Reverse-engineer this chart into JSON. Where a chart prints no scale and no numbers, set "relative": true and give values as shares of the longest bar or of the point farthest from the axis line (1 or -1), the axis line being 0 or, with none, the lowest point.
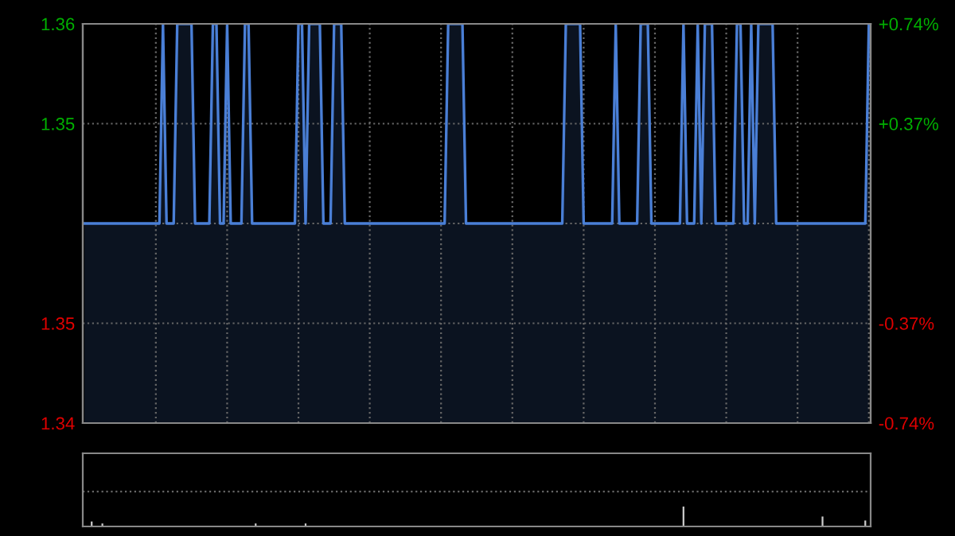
{
  "chart_data": [
    {
      "type": "area",
      "categories": [
        null,
        null,
        null,
        null,
        null,
        null,
        null,
        null,
        null,
        null,
        null,
        null,
        null,
        null,
        null,
        null,
        null,
        null,
        null,
        null,
        null,
        null,
        null,
        null,
        null,
        null,
        null,
        null,
        null,
        null,
        null,
        null,
        null,
        null,
        null,
        null,
        null,
        null,
        null,
        null,
        null,
        null,
        null,
        null,
        null,
        null,
        null,
        null,
        null,
        null,
        null,
        null,
        null,
        null,
        null,
        null,
        null,
        null,
        null,
        null,
        null,
        null,
        null,
        null,
        null,
        null,
        null,
        null,
        null,
        null,
        null,
        null,
        null,
        null,
        null,
        null,
        null,
        null,
        null,
        null,
        null,
        null,
        null,
        null,
        null,
        null,
        null,
        null,
        null,
        null,
        null,
        null,
        null,
        null,
        null,
        null,
        null,
        null,
        null,
        null,
        null,
        null,
        null,
        null,
        null,
        null,
        null,
        null,
        null,
        null,
        null,
        null,
        null,
        null,
        null,
        null,
        null,
        null,
        null,
        null,
        null,
        null,
        null,
        null,
        null,
        null,
        null,
        null,
        null,
        null,
        null,
        null,
        null,
        null,
        null,
        null,
        null,
        null,
        null,
        null,
        null,
        null,
        null,
        null,
        null,
        null,
        null,
        null,
        null,
        null,
        null,
        null,
        null,
        null,
        null,
        null,
        null,
        null,
        null,
        null,
        null,
        null,
        null,
        null,
        null,
        null,
        null,
        null,
        null,
        null,
        null,
        null,
        null,
        null,
        null,
        null,
        null,
        null,
        null,
        null,
        null,
        null,
        null,
        null,
        null,
        null,
        null,
        null,
        null,
        null,
        null,
        null,
        null,
        null,
        null,
        null,
        null,
        null,
        null,
        null,
        null,
        null,
        null,
        null,
        null,
        null,
        null,
        null,
        null,
        null,
        null,
        null,
        null,
        null,
        null,
        null,
        null,
        null,
        null,
        null,
        null
      ],
      "series": [
        {
          "color": "#4a7fd6",
          "values": [
            1.35,
            1.35,
            1.35,
            1.35,
            1.35,
            1.35,
            1.35,
            1.35,
            1.35,
            1.35,
            1.35,
            1.35,
            1.35,
            1.35,
            1.35,
            1.35,
            1.35,
            1.35,
            1.35,
            1.35,
            1.35,
            1.35,
            1.36,
            1.35,
            1.35,
            1.35,
            1.36,
            1.36,
            1.36,
            1.36,
            1.36,
            1.35,
            1.35,
            1.35,
            1.35,
            1.35,
            1.36,
            1.36,
            1.35,
            1.35,
            1.36,
            1.35,
            1.35,
            1.35,
            1.35,
            1.36,
            1.36,
            1.35,
            1.35,
            1.35,
            1.35,
            1.35,
            1.35,
            1.35,
            1.35,
            1.35,
            1.35,
            1.35,
            1.35,
            1.35,
            1.36,
            1.36,
            1.35,
            1.36,
            1.36,
            1.36,
            1.36,
            1.35,
            1.35,
            1.35,
            1.36,
            1.36,
            1.36,
            1.35,
            1.35,
            1.35,
            1.35,
            1.35,
            1.35,
            1.35,
            1.35,
            1.35,
            1.35,
            1.35,
            1.35,
            1.35,
            1.35,
            1.35,
            1.35,
            1.35,
            1.35,
            1.35,
            1.35,
            1.35,
            1.35,
            1.35,
            1.35,
            1.35,
            1.35,
            1.35,
            1.35,
            1.35,
            1.36,
            1.36,
            1.36,
            1.36,
            1.36,
            1.35,
            1.35,
            1.35,
            1.35,
            1.35,
            1.35,
            1.35,
            1.35,
            1.35,
            1.35,
            1.35,
            1.35,
            1.35,
            1.35,
            1.35,
            1.35,
            1.35,
            1.35,
            1.35,
            1.35,
            1.35,
            1.35,
            1.35,
            1.35,
            1.35,
            1.35,
            1.35,
            1.35,
            1.36,
            1.36,
            1.36,
            1.36,
            1.36,
            1.35,
            1.35,
            1.35,
            1.35,
            1.35,
            1.35,
            1.35,
            1.35,
            1.35,
            1.36,
            1.35,
            1.35,
            1.35,
            1.35,
            1.35,
            1.35,
            1.36,
            1.36,
            1.36,
            1.35,
            1.35,
            1.35,
            1.35,
            1.35,
            1.35,
            1.35,
            1.35,
            1.35,
            1.36,
            1.35,
            1.35,
            1.35,
            1.36,
            1.35,
            1.36,
            1.36,
            1.36,
            1.35,
            1.35,
            1.35,
            1.35,
            1.35,
            1.35,
            1.36,
            1.36,
            1.35,
            1.35,
            1.36,
            1.35,
            1.36,
            1.36,
            1.36,
            1.36,
            1.36,
            1.35,
            1.35,
            1.35,
            1.35,
            1.35,
            1.35,
            1.35,
            1.35,
            1.35,
            1.35,
            1.35,
            1.35,
            1.35,
            1.35,
            1.35,
            1.35,
            1.35,
            1.35,
            1.35,
            1.35,
            1.35,
            1.35,
            1.35,
            1.35,
            1.35,
            1.35,
            1.36
          ]
        }
      ],
      "ylim": [
        1.34,
        1.36
      ],
      "yticks": [
        1.36,
        {
          "value": 1.355,
          "label": "1.35"
        },
        {
          "value": 1.35,
          "label": null
        },
        {
          "value": 1.345,
          "label": "1.35"
        },
        1.34
      ],
      "y2lim": [
        -0.74,
        0.74
      ],
      "y2ticks": [
        {
          "value": 0.74,
          "label": "+0.74%"
        },
        {
          "value": 0.37,
          "label": "+0.37%"
        },
        {
          "value": 0,
          "label": null
        },
        {
          "value": -0.37,
          "label": "-0.37%"
        },
        {
          "value": -0.74,
          "label": "-0.74%"
        }
      ],
      "grid": true,
      "tick_labels": "y"
    },
    {
      "type": "bar",
      "relative": true,
      "tick_labels": false,
      "ref_lines": [
        {
          "axis": "y",
          "value": 1.75,
          "color": "#666666",
          "line_style": "dotted"
        }
      ],
      "categories": [
        null,
        null,
        null,
        null,
        null,
        null,
        null,
        null,
        null,
        null,
        null,
        null,
        null,
        null,
        null,
        null,
        null,
        null,
        null,
        null,
        null,
        null,
        null,
        null,
        null,
        null,
        null,
        null,
        null,
        null,
        null,
        null,
        null,
        null,
        null,
        null,
        null,
        null,
        null,
        null,
        null,
        null,
        null,
        null,
        null,
        null,
        null,
        null,
        null,
        null,
        null,
        null,
        null,
        null,
        null,
        null,
        null,
        null,
        null,
        null,
        null,
        null,
        null,
        null,
        null,
        null,
        null,
        null,
        null,
        null,
        null,
        null,
        null,
        null,
        null,
        null,
        null,
        null,
        null,
        null,
        null,
        null,
        null,
        null,
        null,
        null,
        null,
        null,
        null,
        null,
        null,
        null,
        null,
        null,
        null,
        null,
        null,
        null,
        null,
        null,
        null,
        null,
        null,
        null,
        null,
        null,
        null,
        null,
        null,
        null,
        null,
        null,
        null,
        null,
        null,
        null,
        null,
        null,
        null,
        null,
        null,
        null,
        null,
        null,
        null,
        null,
        null,
        null,
        null,
        null,
        null,
        null,
        null,
        null,
        null,
        null,
        null,
        null,
        null,
        null,
        null,
        null,
        null,
        null,
        null,
        null,
        null,
        null,
        null,
        null,
        null,
        null,
        null,
        null,
        null,
        null,
        null,
        null,
        null,
        null,
        null,
        null,
        null,
        null,
        null,
        null,
        null,
        null,
        null,
        null,
        null,
        null,
        null,
        null,
        null,
        null,
        null,
        null,
        null,
        null,
        null,
        null,
        null,
        null,
        null,
        null,
        null,
        null,
        null,
        null,
        null,
        null,
        null,
        null,
        null,
        null,
        null,
        null,
        null,
        null,
        null,
        null,
        null,
        null,
        null,
        null,
        null,
        null,
        null,
        null,
        null,
        null,
        null,
        null,
        null,
        null,
        null,
        null,
        null,
        null,
        null
      ],
      "series": [
        {
          "color": "#cccccc",
          "values": [
            0,
            0,
            0.25,
            0,
            0,
            0.15,
            0,
            0,
            0,
            0,
            0,
            0,
            0,
            0,
            0,
            0,
            0,
            0,
            0,
            0,
            0,
            0,
            0,
            0,
            0,
            0,
            0,
            0,
            0,
            0,
            0,
            0,
            0,
            0,
            0,
            0,
            0,
            0,
            0,
            0,
            0,
            0,
            0,
            0,
            0,
            0,
            0,
            0,
            0.15,
            0,
            0,
            0,
            0,
            0,
            0,
            0,
            0,
            0,
            0,
            0,
            0,
            0,
            0.15,
            0,
            0,
            0,
            0,
            0,
            0,
            0,
            0,
            0,
            0,
            0,
            0,
            0,
            0,
            0,
            0,
            0,
            0,
            0,
            0,
            0,
            0,
            0,
            0,
            0,
            0,
            0,
            0,
            0,
            0,
            0,
            0,
            0,
            0,
            0,
            0,
            0,
            0,
            0,
            0,
            0,
            0,
            0,
            0,
            0,
            0,
            0,
            0,
            0,
            0,
            0,
            0,
            0,
            0,
            0,
            0,
            0,
            0,
            0,
            0,
            0,
            0,
            0,
            0,
            0,
            0,
            0,
            0,
            0,
            0,
            0,
            0,
            0,
            0,
            0,
            0,
            0,
            0,
            0,
            0,
            0,
            0,
            0,
            0,
            0,
            0,
            0,
            0,
            0,
            0,
            0,
            0,
            0,
            0,
            0,
            0,
            0,
            0,
            0,
            0,
            0,
            0,
            0,
            0,
            0,
            1,
            0,
            0,
            0,
            0,
            0,
            0,
            0,
            0,
            0,
            0,
            0,
            0,
            0,
            0,
            0,
            0,
            0,
            0,
            0,
            0,
            0,
            0,
            0,
            0,
            0,
            0,
            0,
            0,
            0,
            0,
            0,
            0,
            0,
            0,
            0,
            0,
            0,
            0,
            0.5,
            0,
            0,
            0,
            0,
            0,
            0,
            0,
            0,
            0,
            0,
            0,
            0.3,
            0
          ]
        }
      ]
    }
  ]
}
